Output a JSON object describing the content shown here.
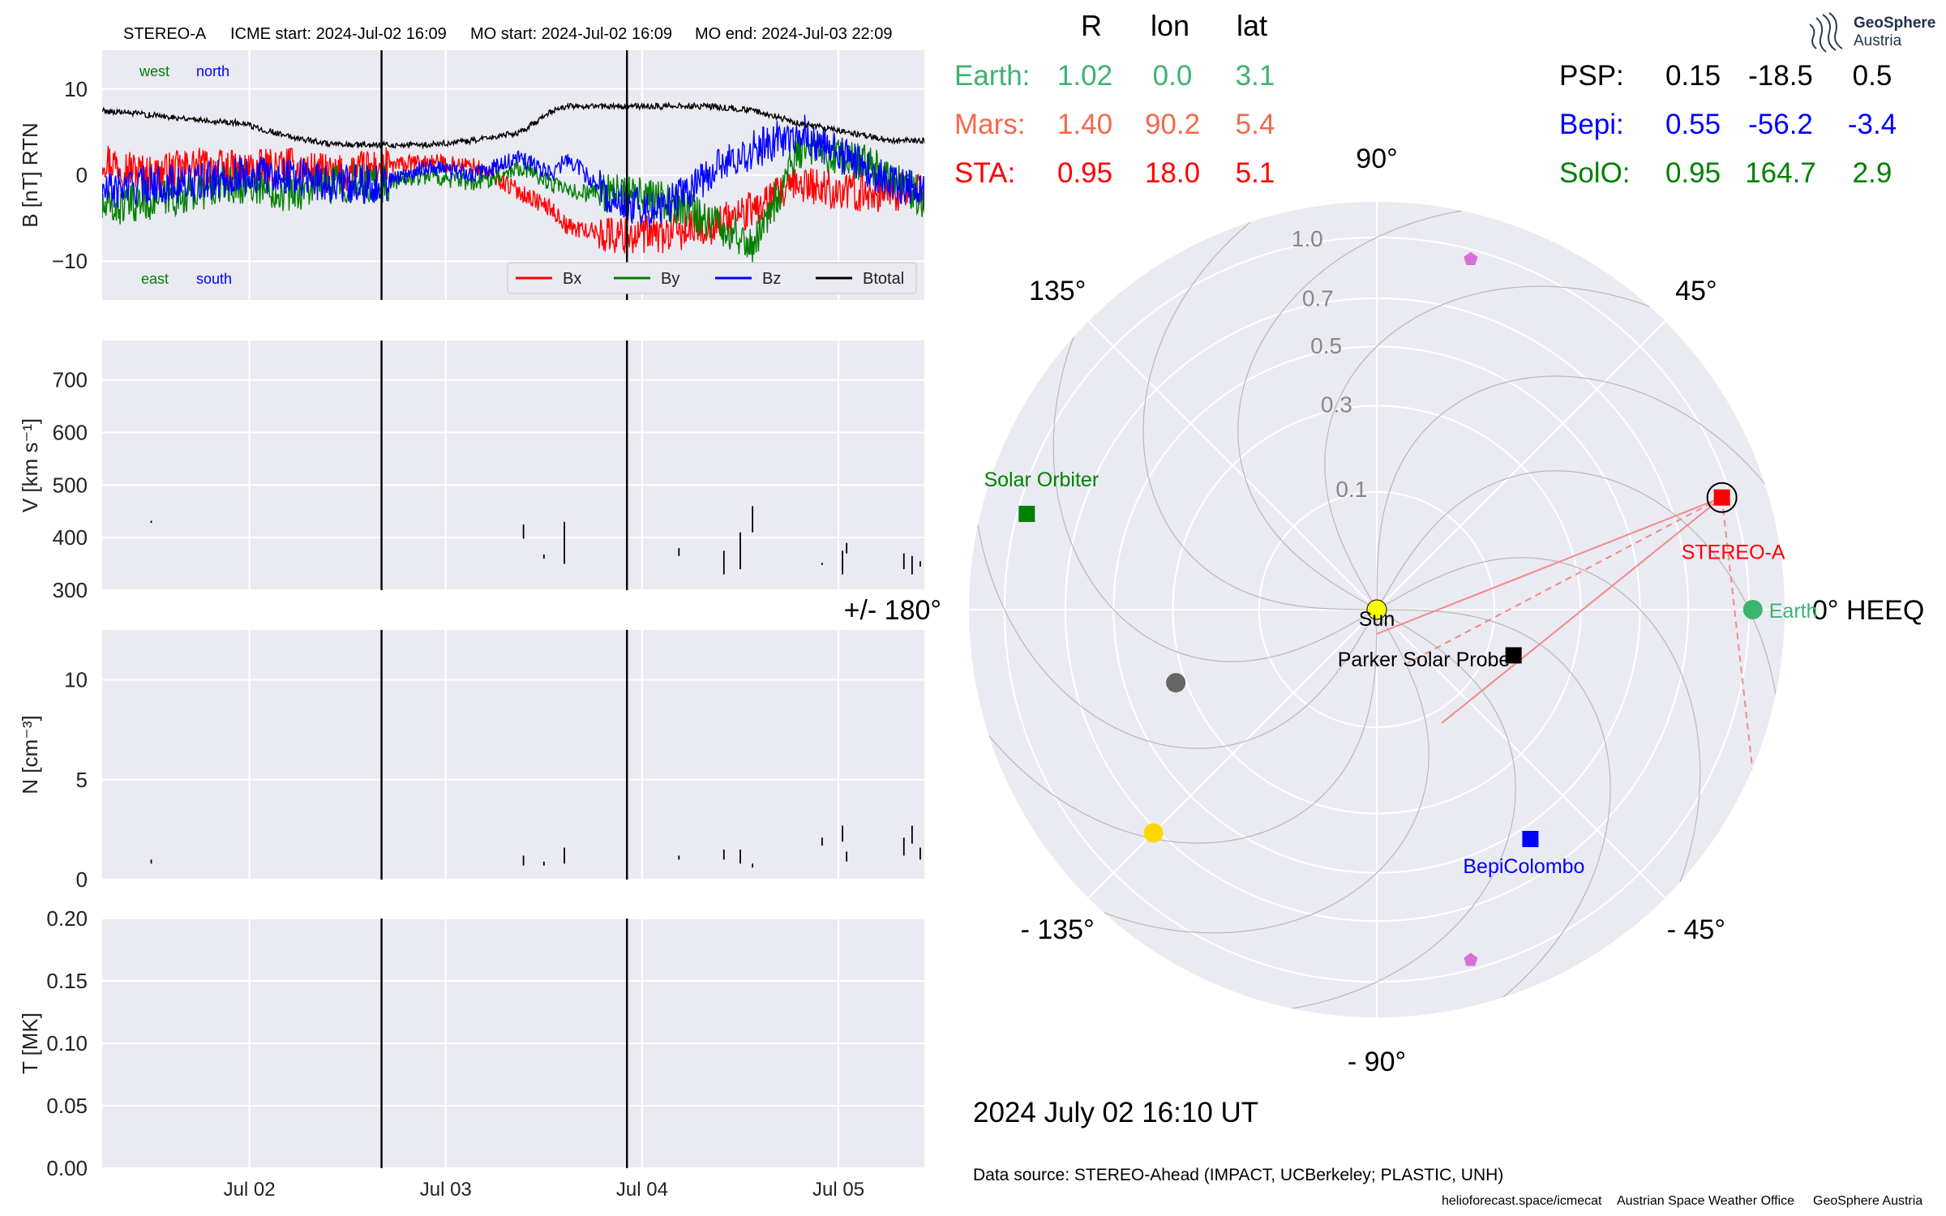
{
  "header": {
    "spacecraft": "STEREO-A",
    "icme_start": "ICME start: 2024-Jul-02 16:09",
    "mo_start": "MO start: 2024-Jul-02 16:09",
    "mo_end": "MO end: 2024-Jul-03 22:09"
  },
  "logo": {
    "line1": "GeoSphere",
    "line2": "Austria"
  },
  "position_table": {
    "headers": [
      "R",
      "lon",
      "lat"
    ],
    "rows": [
      {
        "name": "Earth:",
        "r": "1.02",
        "lon": "0.0",
        "lat": "3.1",
        "color": "#3cb371"
      },
      {
        "name": "Mars:",
        "r": "1.40",
        "lon": "90.2",
        "lat": "5.4",
        "color": "#f4694d"
      },
      {
        "name": "STA:",
        "r": "0.95",
        "lon": "18.0",
        "lat": "5.1",
        "color": "#ff0000"
      },
      {
        "name": "PSP:",
        "r": "0.15",
        "lon": "-18.5",
        "lat": "0.5",
        "color": "#000000"
      },
      {
        "name": "Bepi:",
        "r": "0.55",
        "lon": "-56.2",
        "lat": "-3.4",
        "color": "#0000ff"
      },
      {
        "name": "SolO:",
        "r": "0.95",
        "lon": "164.7",
        "lat": "2.9",
        "color": "#008000"
      }
    ]
  },
  "timestamp": "2024 July 02  16:10 UT",
  "data_source": "Data source: STEREO-Ahead (IMPACT, UCBerkeley; PLASTIC, UNH)",
  "footer": {
    "credit1": "helioforecast.space/icmecat",
    "credit2": "Austrian Space Weather Office",
    "credit3": "GeoSphere Austria"
  },
  "chart_data": [
    {
      "type": "line",
      "panel": "magnetic_field",
      "ylabel": "B [nT] RTN",
      "ylim": [
        -14.5,
        14.5
      ],
      "yticks": [
        -10,
        0,
        10
      ],
      "x_range": [
        "2024-07-01 06:00",
        "2024-07-05 10:30"
      ],
      "xticks": [
        "Jul 02",
        "Jul 03",
        "Jul 04",
        "Jul 05"
      ],
      "xtick_dates": [
        "2024-07-02",
        "2024-07-03",
        "2024-07-04",
        "2024-07-05"
      ],
      "event_lines": [
        "2024-07-02 16:09",
        "2024-07-03 22:09"
      ],
      "annotations_top": [
        {
          "text": "west",
          "color": "#008000"
        },
        {
          "text": "north",
          "color": "#0000ff"
        }
      ],
      "annotations_bottom": [
        {
          "text": "east",
          "color": "#008000"
        },
        {
          "text": "south",
          "color": "#0000ff"
        }
      ],
      "legend_position": "lower-right",
      "grid": true,
      "x_hours_since_range_start": [
        0,
        6,
        12,
        18,
        24,
        30,
        36,
        42,
        48,
        54,
        58,
        60,
        66,
        72,
        78,
        84,
        90,
        96,
        102,
        106
      ],
      "series": [
        {
          "name": "Bx",
          "color": "#ff0000",
          "values": [
            2,
            0,
            1,
            0.5,
            1,
            0,
            1,
            1.5,
            1,
            -2,
            -4,
            -6,
            -7,
            -7,
            -6,
            -4,
            -1,
            -2,
            -2,
            -2
          ]
        },
        {
          "name": "By",
          "color": "#008000",
          "values": [
            -4,
            -3,
            -2,
            -1,
            -2,
            -1,
            -1,
            0,
            -1,
            1,
            -1,
            -2,
            -2,
            -3,
            -5,
            -8,
            3,
            2,
            0,
            -3
          ]
        },
        {
          "name": "Bz",
          "color": "#0000ff",
          "values": [
            -2,
            -1,
            -1,
            0,
            0,
            -1,
            -1,
            1,
            0,
            2,
            0,
            2,
            -3,
            -4,
            0,
            3,
            5,
            2,
            -1,
            -2
          ]
        },
        {
          "name": "Btotal",
          "color": "#000000",
          "values": [
            7.5,
            7,
            6.5,
            6,
            4.5,
            3.5,
            3.5,
            3.5,
            4,
            5,
            7.5,
            8,
            8,
            8,
            8,
            7.5,
            6,
            5,
            4,
            4
          ]
        }
      ]
    },
    {
      "type": "line",
      "panel": "speed",
      "ylabel": "V [km s⁻¹]",
      "ylim": [
        300,
        775
      ],
      "yticks": [
        300,
        400,
        500,
        600,
        700
      ],
      "x_range": [
        "2024-07-01 06:00",
        "2024-07-05 10:30"
      ],
      "grid": true,
      "segments": [
        {
          "x": "2024-07-01 12:00",
          "y": [
            428,
            432
          ]
        },
        {
          "x": "2024-07-03 09:30",
          "y": [
            398,
            425
          ]
        },
        {
          "x": "2024-07-03 12:00",
          "y": [
            360,
            368
          ]
        },
        {
          "x": "2024-07-03 14:30",
          "y": [
            350,
            430
          ]
        },
        {
          "x": "2024-07-04 04:30",
          "y": [
            365,
            380
          ]
        },
        {
          "x": "2024-07-04 10:00",
          "y": [
            330,
            375
          ]
        },
        {
          "x": "2024-07-04 12:00",
          "y": [
            340,
            410
          ]
        },
        {
          "x": "2024-07-04 13:30",
          "y": [
            410,
            460
          ]
        },
        {
          "x": "2024-07-04 22:00",
          "y": [
            348,
            352
          ]
        },
        {
          "x": "2024-07-05 00:30",
          "y": [
            330,
            375
          ]
        },
        {
          "x": "2024-07-05 01:00",
          "y": [
            370,
            390
          ]
        },
        {
          "x": "2024-07-05 08:00",
          "y": [
            340,
            370
          ]
        },
        {
          "x": "2024-07-05 09:00",
          "y": [
            330,
            365
          ]
        },
        {
          "x": "2024-07-05 10:00",
          "y": [
            345,
            355
          ]
        }
      ]
    },
    {
      "type": "line",
      "panel": "density",
      "ylabel": "N [cm⁻³]",
      "ylim": [
        0,
        12.5
      ],
      "yticks": [
        0,
        5,
        10
      ],
      "x_range": [
        "2024-07-01 06:00",
        "2024-07-05 10:30"
      ],
      "grid": true,
      "segments": [
        {
          "x": "2024-07-01 12:00",
          "y": [
            0.8,
            1.0
          ]
        },
        {
          "x": "2024-07-03 09:30",
          "y": [
            0.7,
            1.2
          ]
        },
        {
          "x": "2024-07-03 12:00",
          "y": [
            0.7,
            0.9
          ]
        },
        {
          "x": "2024-07-03 14:30",
          "y": [
            0.8,
            1.6
          ]
        },
        {
          "x": "2024-07-04 04:30",
          "y": [
            1.0,
            1.2
          ]
        },
        {
          "x": "2024-07-04 10:00",
          "y": [
            1.0,
            1.5
          ]
        },
        {
          "x": "2024-07-04 12:00",
          "y": [
            0.8,
            1.5
          ]
        },
        {
          "x": "2024-07-04 13:30",
          "y": [
            0.6,
            0.8
          ]
        },
        {
          "x": "2024-07-04 22:00",
          "y": [
            1.7,
            2.1
          ]
        },
        {
          "x": "2024-07-05 00:30",
          "y": [
            1.9,
            2.7
          ]
        },
        {
          "x": "2024-07-05 01:00",
          "y": [
            0.9,
            1.4
          ]
        },
        {
          "x": "2024-07-05 08:00",
          "y": [
            1.2,
            2.1
          ]
        },
        {
          "x": "2024-07-05 09:00",
          "y": [
            1.8,
            2.7
          ]
        },
        {
          "x": "2024-07-05 10:00",
          "y": [
            1.0,
            1.6
          ]
        }
      ]
    },
    {
      "type": "line",
      "panel": "temperature",
      "ylabel": "T [MK]",
      "ylim": [
        0,
        0.2
      ],
      "yticks": [
        0.0,
        0.05,
        0.1,
        0.15,
        0.2
      ],
      "x_range": [
        "2024-07-01 06:00",
        "2024-07-05 10:30"
      ],
      "grid": true,
      "segments": []
    },
    {
      "type": "scatter",
      "panel": "polar_position_plot",
      "coordinate_system": "HEEQ",
      "radial_ticks": [
        0.1,
        0.3,
        0.5,
        0.7,
        1.0
      ],
      "r_scale": "sqrt",
      "angle_labels": [
        {
          "deg": 0,
          "text": "0° HEEQ"
        },
        {
          "deg": 45,
          "text": "45°"
        },
        {
          "deg": 90,
          "text": "90°"
        },
        {
          "deg": 135,
          "text": "135°"
        },
        {
          "deg": 180,
          "text": "+/- 180°"
        },
        {
          "deg": -135,
          "text": "- 135°"
        },
        {
          "deg": -90,
          "text": "- 90°"
        },
        {
          "deg": -45,
          "text": "- 45°"
        }
      ],
      "bodies": [
        {
          "name": "Sun",
          "label": "Sun",
          "r": 0,
          "lon": 0,
          "marker": "circle",
          "color": "#ffff00"
        },
        {
          "name": "Earth",
          "label": "Earth",
          "r": 1.02,
          "lon": 0.0,
          "marker": "circle",
          "color": "#3cb371"
        },
        {
          "name": "STEREO-A",
          "label": "STEREO-A",
          "r": 0.95,
          "lon": 18.0,
          "marker": "square",
          "color": "#ff0000"
        },
        {
          "name": "Parker Solar Probe",
          "label": "Parker Solar Probe",
          "r": 0.15,
          "lon": -18.5,
          "marker": "square",
          "color": "#000000"
        },
        {
          "name": "BepiColombo",
          "label": "BepiColombo",
          "r": 0.55,
          "lon": -56.2,
          "marker": "square",
          "color": "#0000ff"
        },
        {
          "name": "Solar Orbiter",
          "label": "Solar Orbiter",
          "r": 0.95,
          "lon": 164.7,
          "marker": "square",
          "color": "#008000"
        },
        {
          "name": "Mercury",
          "label": "",
          "r": 0.33,
          "lon": -160,
          "marker": "circle",
          "color": "#666666"
        },
        {
          "name": "Venus",
          "label": "",
          "r": 0.72,
          "lon": -135,
          "marker": "circle",
          "color": "#ffd700"
        },
        {
          "name": "Planet-pentagon-1",
          "label": "",
          "r": 0.95,
          "lon": 75,
          "marker": "pentagon",
          "color": "#da70d6"
        },
        {
          "name": "Planet-pentagon-2",
          "label": "",
          "r": 0.95,
          "lon": -75,
          "marker": "pentagon",
          "color": "#da70d6"
        }
      ]
    }
  ]
}
